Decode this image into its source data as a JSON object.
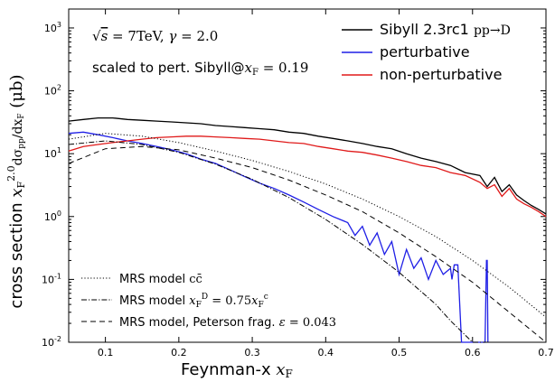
{
  "chart_data": {
    "type": "line",
    "xlabel": "Feynman-x x_F",
    "ylabel": "cross section x_F^2.0 dσ_pp/dx_F (μb)",
    "xlim": [
      0.05,
      0.7
    ],
    "ylim": [
      0.01,
      2000
    ],
    "yscale": "log",
    "x_ticks": [
      "0.1",
      "0.2",
      "0.3",
      "0.4",
      "0.5",
      "0.6",
      "0.7"
    ],
    "y_ticks": [
      "10^-2",
      "10^-1",
      "10^0",
      "10^1",
      "10^2",
      "10^3"
    ],
    "annotations": [
      "√s = 7TeV, γ = 2.0",
      "scaled to pert. Sibyll@x_F = 0.19"
    ],
    "legend_top": {
      "placement": "top-right",
      "entries": [
        "Sibyll 2.3rc1 pp→D",
        "perturbative",
        "non-perturbative"
      ]
    },
    "legend_bottom": {
      "placement": "bottom-left",
      "entries": [
        "MRS model cc̄",
        "MRS model x_F^D = 0.75 x_F^c",
        "MRS model, Peterson frag. ε = 0.043"
      ]
    },
    "colors": {
      "total": "#000000",
      "perturbative": "#1f1fe6",
      "non_perturbative": "#e01a1a",
      "mrs": "#000000"
    },
    "series": [
      {
        "name": "Sibyll 2.3rc1 pp→D",
        "style": "solid",
        "x": [
          0.05,
          0.07,
          0.09,
          0.11,
          0.13,
          0.15,
          0.17,
          0.19,
          0.21,
          0.23,
          0.25,
          0.27,
          0.29,
          0.31,
          0.33,
          0.35,
          0.37,
          0.39,
          0.41,
          0.43,
          0.45,
          0.47,
          0.49,
          0.51,
          0.53,
          0.55,
          0.57,
          0.59,
          0.61,
          0.62,
          0.63,
          0.64,
          0.65,
          0.66,
          0.67,
          0.68,
          0.69,
          0.7
        ],
        "values": [
          33,
          35,
          37,
          37,
          35,
          34,
          33,
          32,
          31,
          30,
          28,
          27,
          26,
          25,
          24,
          22,
          21,
          19,
          17.5,
          16,
          14.5,
          13,
          12,
          10,
          8.5,
          7.5,
          6.5,
          5,
          4.5,
          3,
          4.2,
          2.5,
          3.2,
          2.2,
          1.8,
          1.5,
          1.3,
          1.1
        ]
      },
      {
        "name": "perturbative",
        "style": "solid",
        "x": [
          0.05,
          0.07,
          0.09,
          0.11,
          0.13,
          0.15,
          0.17,
          0.19,
          0.21,
          0.23,
          0.25,
          0.27,
          0.29,
          0.31,
          0.33,
          0.35,
          0.37,
          0.39,
          0.41,
          0.43,
          0.44,
          0.45,
          0.46,
          0.47,
          0.48,
          0.49,
          0.5,
          0.51,
          0.52,
          0.53,
          0.54,
          0.55,
          0.56,
          0.57,
          0.572,
          0.575,
          0.58,
          0.585,
          0.617,
          0.619,
          0.62,
          0.621
        ],
        "values": [
          21,
          22,
          20,
          18,
          16,
          14.5,
          13,
          11.5,
          10,
          8.2,
          7,
          5.5,
          4.3,
          3.4,
          2.8,
          2.2,
          1.7,
          1.3,
          1.0,
          0.8,
          0.5,
          0.7,
          0.35,
          0.55,
          0.25,
          0.4,
          0.12,
          0.3,
          0.15,
          0.22,
          0.1,
          0.2,
          0.12,
          0.15,
          0.1,
          0.17,
          0.17,
          0.01,
          0.01,
          0.2,
          0.2,
          0.01
        ]
      },
      {
        "name": "non-perturbative",
        "style": "solid",
        "x": [
          0.05,
          0.07,
          0.09,
          0.11,
          0.13,
          0.15,
          0.17,
          0.19,
          0.21,
          0.23,
          0.25,
          0.27,
          0.29,
          0.31,
          0.33,
          0.35,
          0.37,
          0.39,
          0.41,
          0.43,
          0.45,
          0.47,
          0.49,
          0.51,
          0.53,
          0.55,
          0.57,
          0.59,
          0.61,
          0.62,
          0.63,
          0.64,
          0.65,
          0.66,
          0.67,
          0.68,
          0.69,
          0.7
        ],
        "values": [
          11,
          13,
          14,
          15,
          16,
          17,
          18,
          18.5,
          19,
          19,
          18.5,
          18,
          17.5,
          17,
          16,
          15,
          14.5,
          13,
          12,
          11,
          10.5,
          9.5,
          8.5,
          7.5,
          6.5,
          6,
          5,
          4.5,
          3.5,
          2.8,
          3.2,
          2.1,
          2.8,
          1.9,
          1.6,
          1.4,
          1.2,
          1.0
        ]
      },
      {
        "name": "MRS model cc̄",
        "style": "dotted",
        "x": [
          0.05,
          0.1,
          0.15,
          0.2,
          0.25,
          0.3,
          0.35,
          0.4,
          0.45,
          0.5,
          0.55,
          0.6,
          0.65,
          0.7
        ],
        "values": [
          17,
          21,
          19,
          15,
          11,
          7.8,
          5.2,
          3.3,
          1.9,
          1.0,
          0.48,
          0.2,
          0.075,
          0.025
        ]
      },
      {
        "name": "MRS model x_F^D = 0.75 x_F^c",
        "style": "dashdot",
        "x": [
          0.05,
          0.1,
          0.15,
          0.2,
          0.25,
          0.3,
          0.35,
          0.4,
          0.45,
          0.5,
          0.55,
          0.57,
          0.6,
          0.7
        ],
        "values": [
          14,
          16,
          14,
          10.5,
          6.8,
          3.9,
          2.0,
          0.9,
          0.36,
          0.13,
          0.04,
          0.022,
          0.01,
          0.01
        ]
      },
      {
        "name": "MRS model, Peterson frag. ε = 0.043",
        "style": "dashed",
        "x": [
          0.05,
          0.1,
          0.15,
          0.2,
          0.25,
          0.3,
          0.35,
          0.4,
          0.45,
          0.5,
          0.55,
          0.6,
          0.65,
          0.7
        ],
        "values": [
          7,
          12,
          13,
          11.5,
          8.5,
          6,
          3.8,
          2.2,
          1.2,
          0.55,
          0.23,
          0.09,
          0.03,
          0.01
        ]
      }
    ]
  }
}
